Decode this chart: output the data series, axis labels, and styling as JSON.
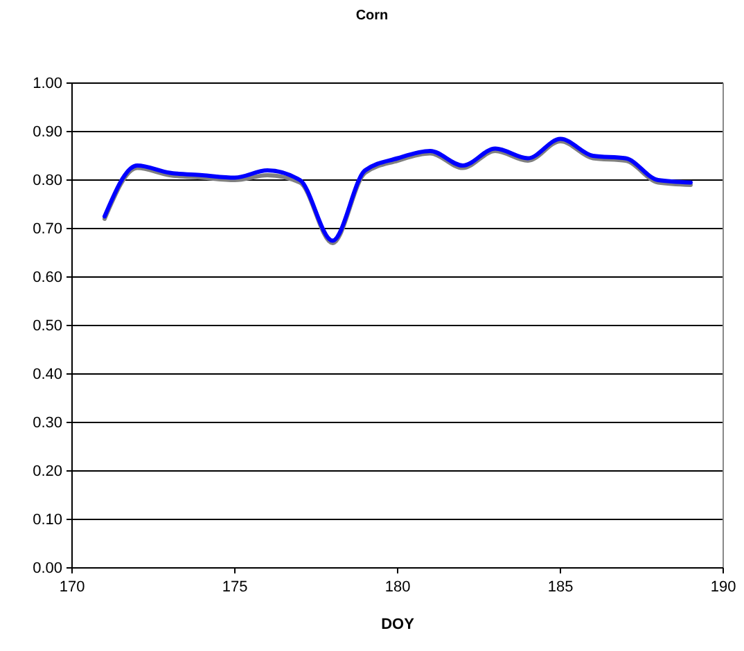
{
  "chart_data": {
    "type": "line",
    "title": "Corn",
    "xlabel": "DOY",
    "x": [
      171,
      172,
      173,
      174,
      175,
      176,
      177,
      178,
      179,
      180,
      181,
      182,
      183,
      184,
      185,
      186,
      187,
      188,
      189
    ],
    "series": [
      {
        "color": "#808080",
        "values": [
          0.72,
          0.825,
          0.81,
          0.805,
          0.8,
          0.81,
          0.795,
          0.67,
          0.815,
          0.84,
          0.855,
          0.825,
          0.86,
          0.84,
          0.88,
          0.845,
          0.84,
          0.795,
          0.79
        ]
      },
      {
        "color": "#0000ff",
        "values": [
          0.725,
          0.83,
          0.815,
          0.81,
          0.805,
          0.82,
          0.8,
          0.675,
          0.82,
          0.845,
          0.86,
          0.83,
          0.865,
          0.845,
          0.885,
          0.85,
          0.845,
          0.8,
          0.795
        ]
      }
    ],
    "xlim": [
      170,
      190
    ],
    "xticks": [
      170,
      175,
      180,
      185,
      190
    ],
    "ylim": [
      0,
      1
    ],
    "yticks": [
      {
        "value": 0,
        "label": "0.00"
      },
      {
        "value": 0.1,
        "label": "0.10"
      },
      {
        "value": 0.2,
        "label": "0.20"
      },
      {
        "value": 0.3,
        "label": "0.30"
      },
      {
        "value": 0.4,
        "label": "0.40"
      },
      {
        "value": 0.5,
        "label": "0.50"
      },
      {
        "value": 0.6,
        "label": "0.60"
      },
      {
        "value": 0.7,
        "label": "0.70"
      },
      {
        "value": 0.8,
        "label": "0.80"
      },
      {
        "value": 0.9,
        "label": "0.90"
      },
      {
        "value": 1,
        "label": "1.00"
      }
    ],
    "grid": "y",
    "marker": "none",
    "line_style": "solid"
  }
}
